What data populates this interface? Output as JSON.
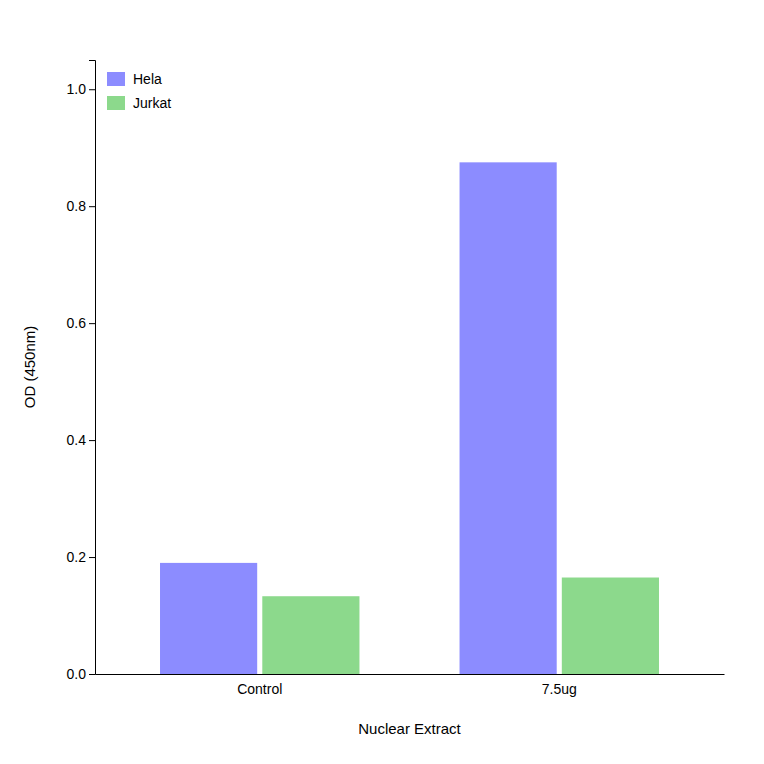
{
  "chart_data": {
    "type": "bar",
    "xlabel": "Nuclear Extract",
    "ylabel": "OD (450nm)",
    "categories": [
      "Control",
      "7.5ug"
    ],
    "series": [
      {
        "name": "Hela",
        "color": "#6666ff",
        "values": [
          0.19,
          0.875
        ]
      },
      {
        "name": "Jurkat",
        "color": "#66cc66",
        "values": [
          0.133,
          0.165
        ]
      }
    ],
    "ylim": [
      0.0,
      1.05
    ],
    "yticks": [
      {
        "value": 0,
        "label": "0.0"
      },
      0.2,
      0.4,
      0.6,
      0.8,
      {
        "value": 1,
        "label": "1.0"
      }
    ],
    "grid": false,
    "legend": "upper left"
  }
}
